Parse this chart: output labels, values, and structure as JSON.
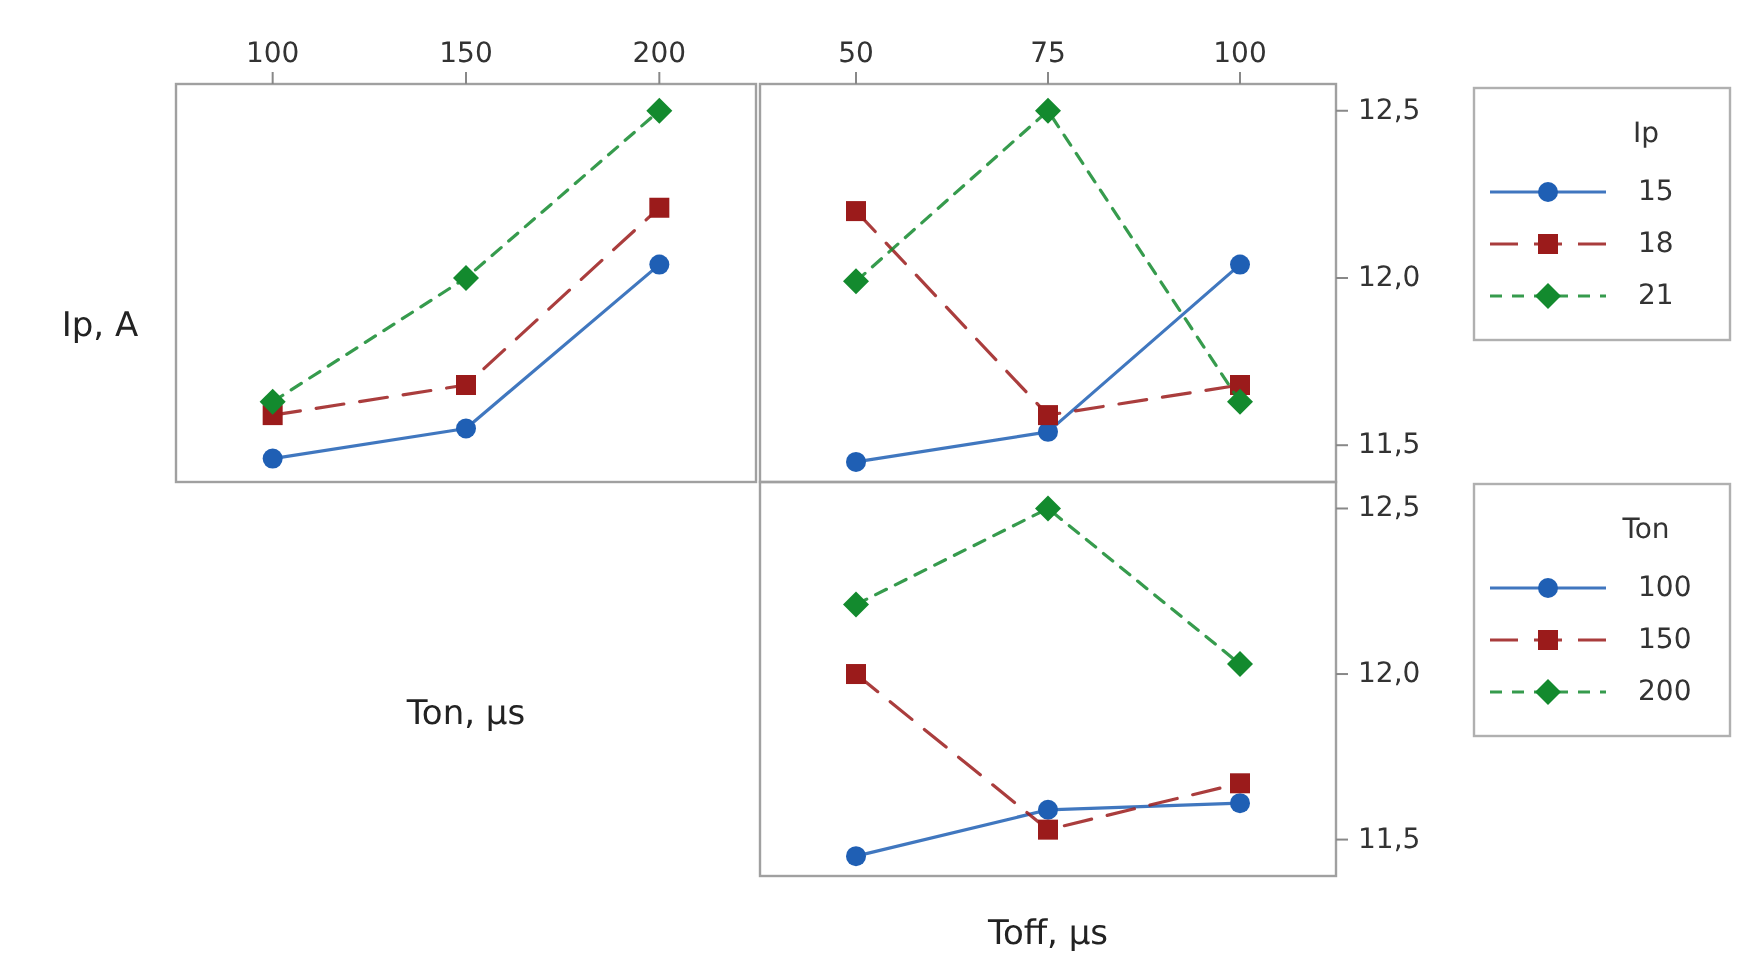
{
  "chart_data": [
    {
      "type": "line",
      "ylabel": "Ip, A",
      "xlabel": "Ton, μs",
      "x": [
        100,
        150,
        200
      ],
      "xlim": [
        75,
        225
      ],
      "xticks": [
        100,
        150,
        200
      ],
      "ylim": [
        11.39,
        12.58
      ],
      "tick_labels": "x",
      "grid": false,
      "legend": false,
      "series": [
        {
          "color": "#1f5fb4",
          "marker": "circle",
          "line_style": "solid",
          "values": [
            11.46,
            11.55,
            12.04
          ]
        },
        {
          "color": "#9b1b1b",
          "marker": "square",
          "line_style": "dashed",
          "values": [
            11.59,
            11.68,
            12.21
          ]
        },
        {
          "color": "#138a2e",
          "marker": "diamond",
          "line_style": "dotted",
          "values": [
            11.63,
            12.0,
            12.5
          ]
        }
      ]
    },
    {
      "type": "line",
      "x": [
        50,
        75,
        100
      ],
      "xlim": [
        37.5,
        112.5
      ],
      "xticks": [
        50,
        75,
        100
      ],
      "ylim": [
        11.39,
        12.58
      ],
      "yticks": [
        {
          "value": 11.5,
          "label": "11,5"
        },
        {
          "value": 12.0,
          "label": "12,0"
        },
        {
          "value": 12.5,
          "label": "12,5"
        }
      ],
      "grid": false,
      "legend": "right",
      "legend_title": "Ip",
      "series": [
        {
          "name": "15",
          "color": "#1f5fb4",
          "marker": "circle",
          "line_style": "solid",
          "values": [
            11.45,
            11.54,
            12.04
          ]
        },
        {
          "name": "18",
          "color": "#9b1b1b",
          "marker": "square",
          "line_style": "dashed",
          "values": [
            12.2,
            11.59,
            11.68
          ]
        },
        {
          "name": "21",
          "color": "#138a2e",
          "marker": "diamond",
          "line_style": "dotted",
          "values": [
            11.99,
            12.5,
            11.63
          ]
        }
      ]
    },
    {
      "type": "line",
      "xlabel": "Toff, μs",
      "x": [
        50,
        75,
        100
      ],
      "xlim": [
        37.5,
        112.5
      ],
      "ylim": [
        11.39,
        12.58
      ],
      "yticks": [
        {
          "value": 11.5,
          "label": "11,5"
        },
        {
          "value": 12.0,
          "label": "12,0"
        },
        {
          "value": 12.5,
          "label": "12,5"
        }
      ],
      "tick_labels": "y",
      "grid": false,
      "legend": "right",
      "legend_title": "Ton",
      "series": [
        {
          "name": "100",
          "color": "#1f5fb4",
          "marker": "circle",
          "line_style": "solid",
          "values": [
            11.45,
            11.59,
            11.61
          ]
        },
        {
          "name": "150",
          "color": "#9b1b1b",
          "marker": "square",
          "line_style": "dashed",
          "values": [
            12.0,
            11.53,
            11.67
          ]
        },
        {
          "name": "200",
          "color": "#138a2e",
          "marker": "diamond",
          "line_style": "dotted",
          "values": [
            12.21,
            12.5,
            12.03
          ]
        }
      ]
    }
  ]
}
